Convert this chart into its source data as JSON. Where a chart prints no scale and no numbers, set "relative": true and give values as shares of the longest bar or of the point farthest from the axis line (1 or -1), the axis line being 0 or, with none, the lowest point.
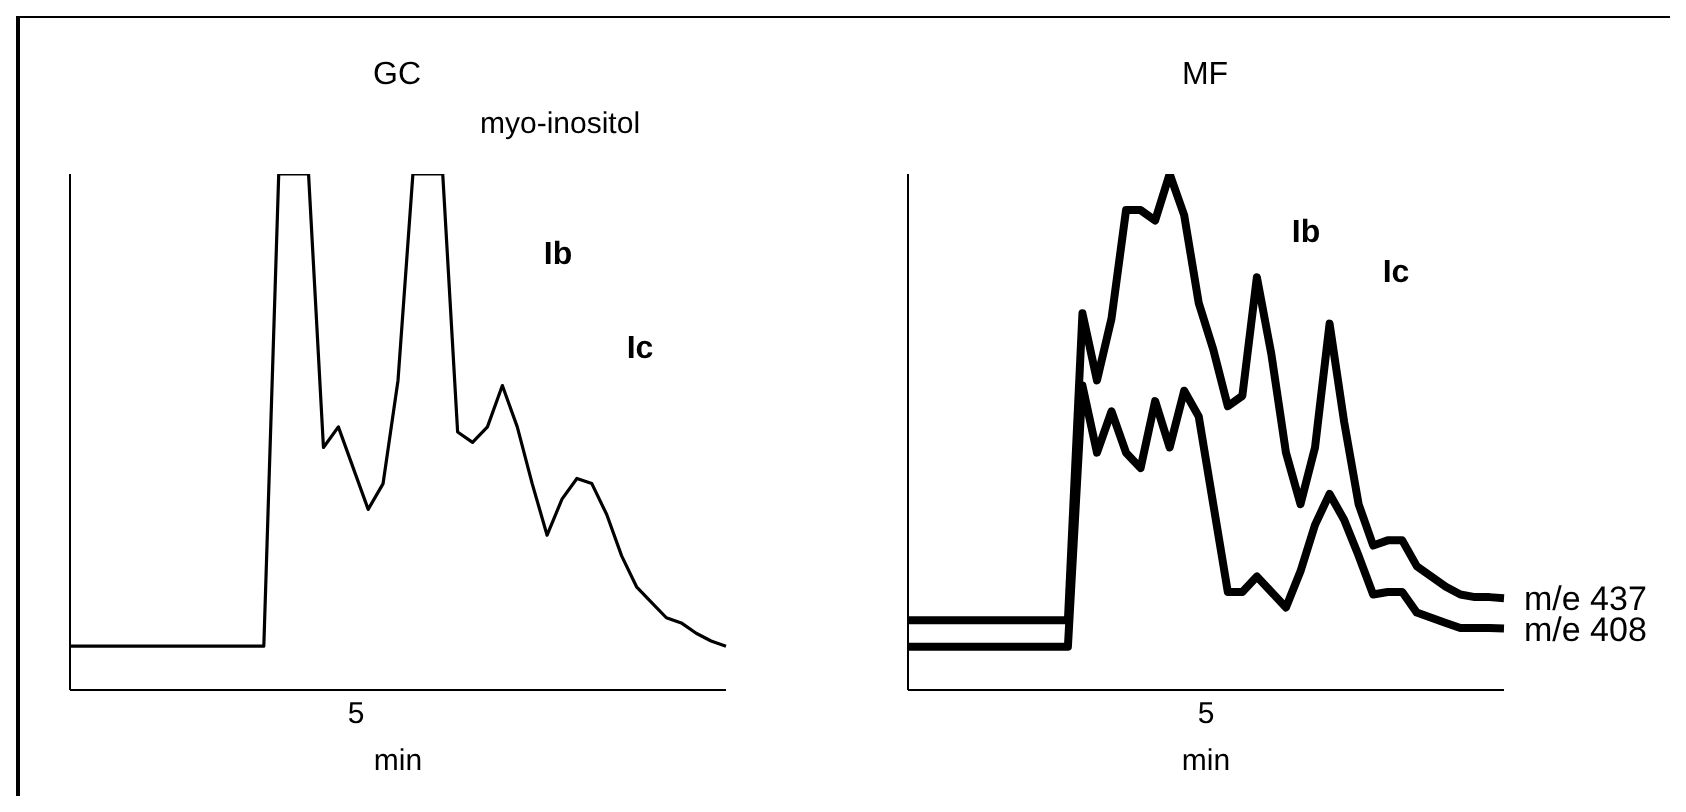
{
  "chart_data": [
    {
      "type": "line",
      "title": "GC",
      "xlabel": "min",
      "relative": true,
      "categories": [
        null,
        null,
        null,
        null,
        null,
        null,
        null,
        null,
        null,
        null,
        null,
        null,
        null,
        null,
        null,
        null,
        null,
        null,
        null,
        null,
        null,
        null,
        null,
        null,
        null,
        null,
        null,
        null,
        null,
        null,
        null,
        null,
        null,
        null,
        null,
        null,
        null,
        null,
        null,
        null,
        null,
        null,
        null,
        null,
        null
      ],
      "annotations": [
        "myo-inositol",
        "Ib",
        "Ic",
        "5"
      ],
      "series": [
        {
          "color": "#000000",
          "values": [
            0.085,
            0.085,
            0.085,
            0.085,
            0.085,
            0.085,
            0.085,
            0.085,
            0.085,
            0.085,
            0.085,
            0.085,
            0.085,
            0.085,
            1,
            1,
            1,
            0.47,
            0.51,
            0.43,
            0.35,
            0.4,
            0.6,
            1,
            1,
            1,
            0.5,
            0.48,
            0.51,
            0.59,
            0.51,
            0.4,
            0.3,
            0.37,
            0.41,
            0.4,
            0.34,
            0.26,
            0.2,
            0.17,
            0.14,
            0.13,
            0.11,
            0.095,
            0.085
          ]
        }
      ]
    },
    {
      "type": "line",
      "title": "MF",
      "xlabel": "min",
      "relative": true,
      "categories": [
        null,
        null,
        null,
        null,
        null,
        null,
        null,
        null,
        null,
        null,
        null,
        null,
        null,
        null,
        null,
        null,
        null,
        null,
        null,
        null,
        null,
        null,
        null,
        null,
        null,
        null,
        null,
        null,
        null,
        null,
        null,
        null,
        null,
        null,
        null,
        null,
        null,
        null,
        null,
        null,
        null,
        null
      ],
      "annotations": [
        "Ib",
        "Ic",
        "5"
      ],
      "series": [
        {
          "name": "m/e 437",
          "color": "#000000",
          "values": [
            0.135,
            0.135,
            0.135,
            0.135,
            0.135,
            0.135,
            0.135,
            0.135,
            0.135,
            0.135,
            0.135,
            0.135,
            0.73,
            0.6,
            0.72,
            0.93,
            0.93,
            0.91,
            1,
            0.92,
            0.75,
            0.66,
            0.55,
            0.57,
            0.8,
            0.65,
            0.46,
            0.36,
            0.47,
            0.71,
            0.52,
            0.36,
            0.28,
            0.29,
            0.29,
            0.24,
            0.22,
            0.2,
            0.185,
            0.18,
            0.18,
            0.178
          ]
        },
        {
          "name": "m/e 408",
          "color": "#000000",
          "values": [
            0.084,
            0.084,
            0.084,
            0.084,
            0.084,
            0.084,
            0.084,
            0.084,
            0.084,
            0.084,
            0.084,
            0.084,
            0.59,
            0.46,
            0.54,
            0.46,
            0.43,
            0.56,
            0.47,
            0.58,
            0.53,
            0.36,
            0.19,
            0.19,
            0.22,
            0.19,
            0.16,
            0.23,
            0.32,
            0.38,
            0.33,
            0.26,
            0.185,
            0.19,
            0.19,
            0.15,
            0.14,
            0.13,
            0.12,
            0.12,
            0.12,
            0.119
          ]
        }
      ]
    }
  ]
}
